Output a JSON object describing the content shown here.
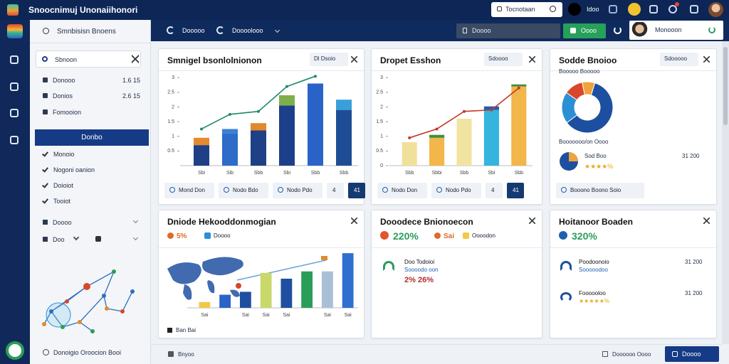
{
  "topbar": {
    "title": "Snoocnimuj Unonaiihonori",
    "search": "Tocnotaan",
    "link": "Idoo"
  },
  "header": {
    "tabs": [
      "Dooooo",
      "Doooolooo"
    ],
    "input": "Doooo",
    "button": "Oooo",
    "user": "Monooon"
  },
  "sidebar": {
    "search": "Smnbisisn Bnoens",
    "filter": "Sbnoon",
    "items": [
      {
        "label": "Donooo",
        "value": "1.6 15"
      },
      {
        "label": "Donios",
        "value": "2.6 15"
      },
      {
        "label": "Fomooion",
        "value": null
      }
    ],
    "button": "Donbo",
    "checks": [
      "Monoio",
      "Nogoni oanion",
      "Doioiot",
      "Tooiot"
    ],
    "selects": [
      "Doooo",
      "Doo"
    ],
    "footer": "Donoigio Oroocion Booi"
  },
  "cards": [
    {
      "title": "Smnigel bsonlolnionon",
      "button": "Dl Dsoio",
      "chart": {
        "ylim": [
          0,
          3.2
        ],
        "yticks": [
          0.5,
          1,
          1.5,
          2,
          2.5,
          3
        ],
        "categories": [
          "Sbi",
          "Sib",
          "Sbb",
          "Sbi",
          "Sbb",
          "Sbb"
        ],
        "base": [
          0.7,
          1.1,
          1.2,
          2.05,
          2.8,
          1.9
        ],
        "top": [
          0.25,
          0.15,
          0.25,
          0.35,
          0,
          0.35
        ],
        "base_colors": [
          "#1f3f86",
          "#2d6cc9",
          "#1f3f86",
          "#1d3f8a",
          "#2a63c7",
          "#1e4d96"
        ],
        "top_colors": [
          "#e58a2c",
          "#3c7fd6",
          "#e0892d",
          "#7db04a",
          "#2a63c7",
          "#39a0dc"
        ],
        "line": [
          1.25,
          1.75,
          1.85,
          2.7,
          3.05,
          null
        ],
        "line_color": "#1f8a6a"
      },
      "buttons": [
        "Mond Don",
        "Nodo Bdo",
        "Nodo Pdo",
        "4",
        "41"
      ]
    },
    {
      "title": "Dropet Esshon",
      "button": "Sdoooo",
      "chart": {
        "ylim": [
          0,
          3.2
        ],
        "yticks": [
          0,
          0.5,
          1,
          1.5,
          2,
          2.5,
          3
        ],
        "categories": [
          "Sbb",
          "Sbbi",
          "Sbb",
          "Sbi",
          "Sbb"
        ],
        "base": [
          0.8,
          0.95,
          1.6,
          1.9,
          2.7
        ],
        "top": [
          0,
          0.1,
          0,
          0.12,
          0.07
        ],
        "base_colors": [
          "#f1e09a",
          "#f2b64a",
          "#f0e4a0",
          "#35b4e0",
          "#f2b64a"
        ],
        "top_colors": [
          "#f1e09a",
          "#3f8f3c",
          "#f0e4a0",
          "#1f5fb0",
          "#3f8f3c"
        ],
        "line": [
          0.95,
          1.25,
          1.85,
          1.9,
          2.65
        ],
        "line_color": "#c0392b"
      },
      "buttons": [
        "Nodo Don",
        "Nodo Pdo",
        "4",
        "41"
      ]
    },
    {
      "title": "Sodde Bnoioo",
      "button": "Sdooooo",
      "subtitle": "Booooo Booooo",
      "donut": {
        "values": [
          60,
          20,
          12,
          8
        ],
        "colors": [
          "#1d4fa0",
          "#2b8fd6",
          "#d9472b",
          "#f0a33a"
        ]
      },
      "caption": "Booooooo/on Oooo",
      "stat": {
        "label": "Sod Boo",
        "value": "31 200",
        "stars": "★★★★%"
      },
      "buttons": [
        "Booono Boono Soio"
      ]
    },
    {
      "title": "Dniode Hekooddonmogian",
      "legend": [
        {
          "label": "5%",
          "color": "#e06a2c"
        },
        {
          "label": "Doooo",
          "color": "#2a8fd6"
        }
      ],
      "chart": {
        "ylim": [
          0,
          80
        ],
        "categories": [
          "Sai",
          null,
          "Sai",
          "Sai",
          "Sai",
          null,
          "Sai",
          "Sai"
        ],
        "base": [
          8,
          18,
          22,
          48,
          40,
          50,
          50,
          75
        ],
        "base_colors": [
          "#f0c84a",
          "#2a63c7",
          "#1f4fa0",
          "#c8d86b",
          "#1f4fa0",
          "#2a9d5a",
          "#a9bfd6",
          "#2f6fd0"
        ]
      },
      "footer": "Ban Bai"
    },
    {
      "title": "Dooodece Bnionoecon",
      "stat": {
        "value": "220%",
        "color": "#2a9d5a",
        "dot": "#e0552c"
      },
      "legend": [
        {
          "label": "Sai",
          "color": "#e06a2c"
        },
        {
          "label": "Oooodon",
          "color": "#f0c84a"
        }
      ],
      "items": [
        {
          "title": "Doo Todoioi",
          "subtitle": "Soooodo oon",
          "value": "2% 26%"
        }
      ]
    },
    {
      "title": "Hoitanoor Boaden",
      "stat": {
        "value": "320%",
        "color": "#2a9d5a",
        "dot": "#1f5fb0"
      },
      "items": [
        {
          "title": "Poodoonoio",
          "subtitle": "Sooooodoo",
          "value": "31 200"
        },
        {
          "title": "Foooooloo",
          "subtitle": "★★★★★%",
          "value": "31 200"
        }
      ]
    }
  ],
  "footer": {
    "left": "Bnyoo",
    "right": "Doooooo Oooo",
    "button": "Doooo"
  }
}
